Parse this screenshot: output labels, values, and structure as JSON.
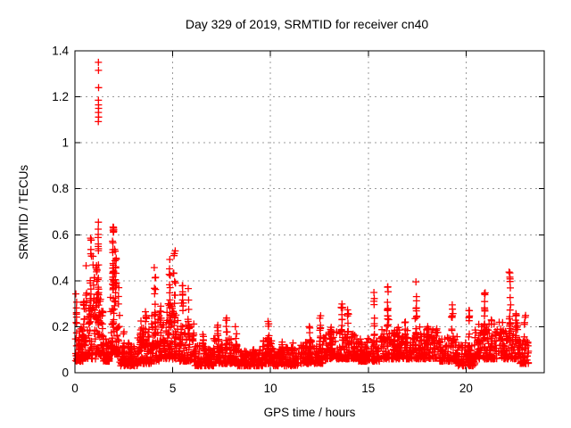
{
  "chart_data": {
    "type": "scatter",
    "title": "Day 329 of 2019, SRMTID for receiver cn40",
    "xlabel": "GPS time / hours",
    "ylabel": "SRMTID / TECUs",
    "xlim": [
      0,
      24
    ],
    "ylim": [
      0,
      1.4
    ],
    "xticks": [
      {
        "v": 0,
        "label": "0"
      },
      {
        "v": 5,
        "label": "5"
      },
      {
        "v": 10,
        "label": "10"
      },
      {
        "v": 15,
        "label": "15"
      },
      {
        "v": 20,
        "label": "20"
      }
    ],
    "yticks": [
      {
        "v": 0.0,
        "label": "0"
      },
      {
        "v": 0.2,
        "label": "0.2"
      },
      {
        "v": 0.4,
        "label": "0.4"
      },
      {
        "v": 0.6,
        "label": "0.6"
      },
      {
        "v": 0.8,
        "label": "0.8"
      },
      {
        "v": 1.0,
        "label": "1"
      },
      {
        "v": 1.2,
        "label": "1.2"
      },
      {
        "v": 1.4,
        "label": "1.4"
      }
    ],
    "grid": true,
    "legend": false,
    "marker": "plus",
    "marker_color": "#ff0000",
    "grid_color": "#9b9b9b",
    "axis_color": "#000000",
    "background_color": "#ffffff",
    "data_time_range_hours": [
      0.03,
      23.2
    ],
    "seed": 20191125,
    "outlier_points": [
      [
        1.2,
        1.35
      ],
      [
        1.205,
        1.315
      ],
      [
        1.21,
        1.24
      ],
      [
        1.2,
        1.185
      ],
      [
        1.205,
        1.165
      ],
      [
        1.21,
        1.15
      ],
      [
        1.2,
        1.132
      ],
      [
        1.21,
        1.112
      ],
      [
        1.195,
        1.092
      ]
    ],
    "band_fields": [
      "t_start",
      "t_end",
      "n_points",
      "v_min",
      "v_max"
    ],
    "baseline_bands": [
      [
        0.03,
        0.45,
        60,
        0.05,
        0.2
      ],
      [
        0.45,
        1.05,
        70,
        0.06,
        0.3
      ],
      [
        1.05,
        1.45,
        60,
        0.08,
        0.35
      ],
      [
        1.45,
        1.8,
        40,
        0.05,
        0.15
      ],
      [
        1.8,
        2.3,
        70,
        0.08,
        0.4
      ],
      [
        2.3,
        3.2,
        90,
        0.03,
        0.13
      ],
      [
        3.2,
        3.9,
        80,
        0.04,
        0.2
      ],
      [
        3.9,
        4.35,
        50,
        0.05,
        0.25
      ],
      [
        4.35,
        5.35,
        100,
        0.06,
        0.3
      ],
      [
        5.35,
        6.1,
        80,
        0.05,
        0.22
      ],
      [
        6.1,
        7.1,
        100,
        0.03,
        0.12
      ],
      [
        7.1,
        8.3,
        110,
        0.04,
        0.15
      ],
      [
        8.3,
        9.6,
        120,
        0.03,
        0.1
      ],
      [
        9.6,
        10.15,
        55,
        0.04,
        0.14
      ],
      [
        10.15,
        11.4,
        120,
        0.03,
        0.11
      ],
      [
        11.4,
        12.7,
        120,
        0.04,
        0.14
      ],
      [
        12.7,
        14.4,
        150,
        0.06,
        0.18
      ],
      [
        14.4,
        15.6,
        110,
        0.05,
        0.15
      ],
      [
        15.6,
        16.6,
        95,
        0.06,
        0.2
      ],
      [
        16.6,
        18.6,
        180,
        0.06,
        0.2
      ],
      [
        18.6,
        19.6,
        90,
        0.05,
        0.16
      ],
      [
        19.6,
        20.45,
        80,
        0.03,
        0.13
      ],
      [
        20.45,
        21.6,
        105,
        0.06,
        0.22
      ],
      [
        21.6,
        22.75,
        105,
        0.06,
        0.22
      ],
      [
        22.75,
        23.2,
        40,
        0.04,
        0.15
      ]
    ],
    "spike_fields": [
      "t_center",
      "t_width",
      "n_points",
      "v_min",
      "v_max"
    ],
    "spike_clusters": [
      [
        0.07,
        0.04,
        8,
        0.18,
        0.42
      ],
      [
        0.45,
        0.05,
        8,
        0.15,
        0.31
      ],
      [
        0.58,
        0.03,
        5,
        0.3,
        0.65
      ],
      [
        0.82,
        0.05,
        12,
        0.25,
        0.62
      ],
      [
        0.97,
        0.04,
        10,
        0.2,
        0.55
      ],
      [
        1.1,
        0.04,
        10,
        0.28,
        0.52
      ],
      [
        1.2,
        0.03,
        18,
        0.3,
        0.66
      ],
      [
        1.95,
        0.05,
        26,
        0.35,
        0.66
      ],
      [
        2.08,
        0.05,
        16,
        0.3,
        0.58
      ],
      [
        2.5,
        0.04,
        6,
        0.08,
        0.18
      ],
      [
        3.35,
        0.05,
        8,
        0.12,
        0.23
      ],
      [
        3.65,
        0.05,
        8,
        0.12,
        0.28
      ],
      [
        4.1,
        0.05,
        14,
        0.15,
        0.46
      ],
      [
        4.55,
        0.04,
        8,
        0.1,
        0.2
      ],
      [
        4.85,
        0.05,
        16,
        0.2,
        0.5
      ],
      [
        5.1,
        0.05,
        14,
        0.2,
        0.55
      ],
      [
        5.5,
        0.05,
        10,
        0.15,
        0.38
      ],
      [
        5.8,
        0.04,
        10,
        0.15,
        0.4
      ],
      [
        6.55,
        0.05,
        8,
        0.1,
        0.22
      ],
      [
        7.3,
        0.06,
        9,
        0.1,
        0.22
      ],
      [
        7.75,
        0.05,
        8,
        0.1,
        0.24
      ],
      [
        8.25,
        0.05,
        7,
        0.08,
        0.2
      ],
      [
        9.9,
        0.05,
        10,
        0.1,
        0.23
      ],
      [
        10.6,
        0.04,
        6,
        0.08,
        0.16
      ],
      [
        11.15,
        0.04,
        6,
        0.08,
        0.15
      ],
      [
        12.0,
        0.05,
        8,
        0.1,
        0.22
      ],
      [
        12.55,
        0.05,
        9,
        0.12,
        0.25
      ],
      [
        13.1,
        0.05,
        8,
        0.12,
        0.22
      ],
      [
        13.65,
        0.06,
        14,
        0.15,
        0.3
      ],
      [
        13.95,
        0.05,
        10,
        0.15,
        0.28
      ],
      [
        14.3,
        0.04,
        7,
        0.1,
        0.2
      ],
      [
        15.3,
        0.04,
        10,
        0.15,
        0.35
      ],
      [
        16.0,
        0.05,
        14,
        0.2,
        0.39
      ],
      [
        16.35,
        0.04,
        7,
        0.1,
        0.22
      ],
      [
        16.9,
        0.05,
        9,
        0.12,
        0.26
      ],
      [
        17.45,
        0.05,
        18,
        0.15,
        0.42
      ],
      [
        18.05,
        0.05,
        10,
        0.12,
        0.3
      ],
      [
        19.3,
        0.06,
        12,
        0.12,
        0.3
      ],
      [
        20.15,
        0.03,
        8,
        0.15,
        0.33
      ],
      [
        20.95,
        0.05,
        16,
        0.15,
        0.38
      ],
      [
        21.3,
        0.04,
        8,
        0.1,
        0.24
      ],
      [
        22.25,
        0.05,
        18,
        0.15,
        0.44
      ],
      [
        22.55,
        0.04,
        10,
        0.12,
        0.3
      ],
      [
        23.0,
        0.05,
        10,
        0.05,
        0.25
      ]
    ]
  }
}
